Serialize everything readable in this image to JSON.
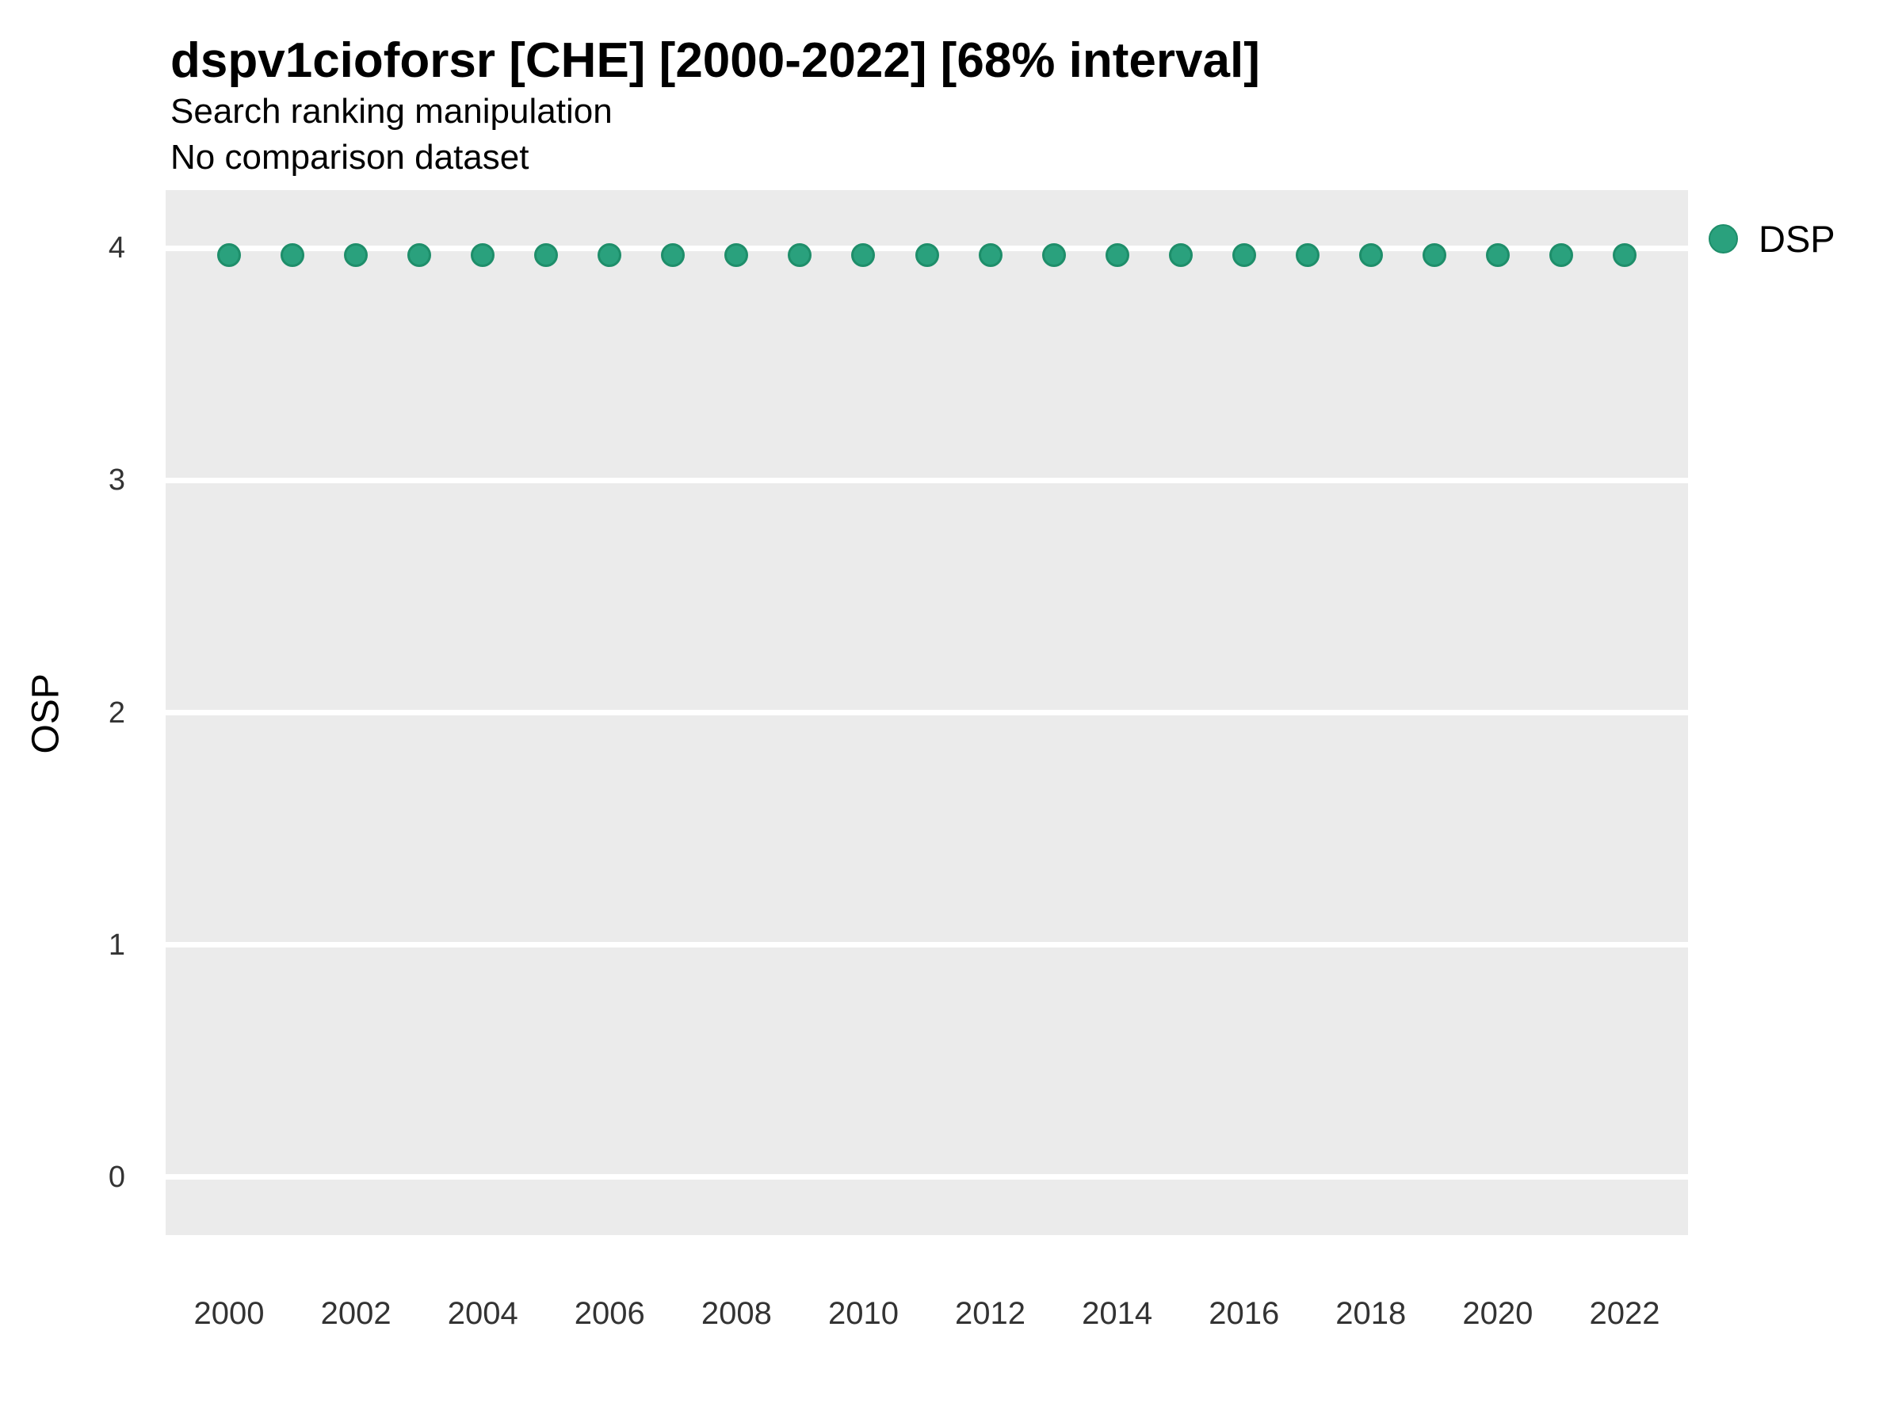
{
  "header": {
    "title": "dspv1cioforsr [CHE] [2000-2022] [68% interval]",
    "subtitle": "Search ranking manipulation",
    "note": "No comparison dataset"
  },
  "legend": {
    "items": [
      {
        "label": "DSP",
        "color": "#2aa17d",
        "border": "#1e8e6a"
      }
    ]
  },
  "chart_data": {
    "type": "scatter",
    "title": "dspv1cioforsr [CHE] [2000-2022] [68% interval]",
    "subtitle": "Search ranking manipulation",
    "note": "No comparison dataset",
    "xlabel": "",
    "ylabel": "OSP",
    "x": [
      2000,
      2001,
      2002,
      2003,
      2004,
      2005,
      2006,
      2007,
      2008,
      2009,
      2010,
      2011,
      2012,
      2013,
      2014,
      2015,
      2016,
      2017,
      2018,
      2019,
      2020,
      2021,
      2022
    ],
    "series": [
      {
        "name": "DSP",
        "values": [
          3.97,
          3.97,
          3.97,
          3.97,
          3.97,
          3.97,
          3.97,
          3.97,
          3.97,
          3.97,
          3.97,
          3.97,
          3.97,
          3.97,
          3.97,
          3.97,
          3.97,
          3.97,
          3.97,
          3.97,
          3.97,
          3.97,
          3.97
        ]
      }
    ],
    "xticks": [
      2000,
      2002,
      2004,
      2006,
      2008,
      2010,
      2012,
      2014,
      2016,
      2018,
      2020,
      2022
    ],
    "yticks": [
      0,
      1,
      2,
      3,
      4
    ],
    "xlim": [
      1999,
      2023
    ],
    "ylim": [
      -0.25,
      4.25
    ],
    "grid": true,
    "legend_position": "right-top",
    "colors": {
      "point": "#2aa17d",
      "point_border": "#1e8e6a",
      "panel_bg": "#ebebeb",
      "grid": "#ffffff",
      "tick_label": "#333333",
      "text": "#000000"
    }
  }
}
